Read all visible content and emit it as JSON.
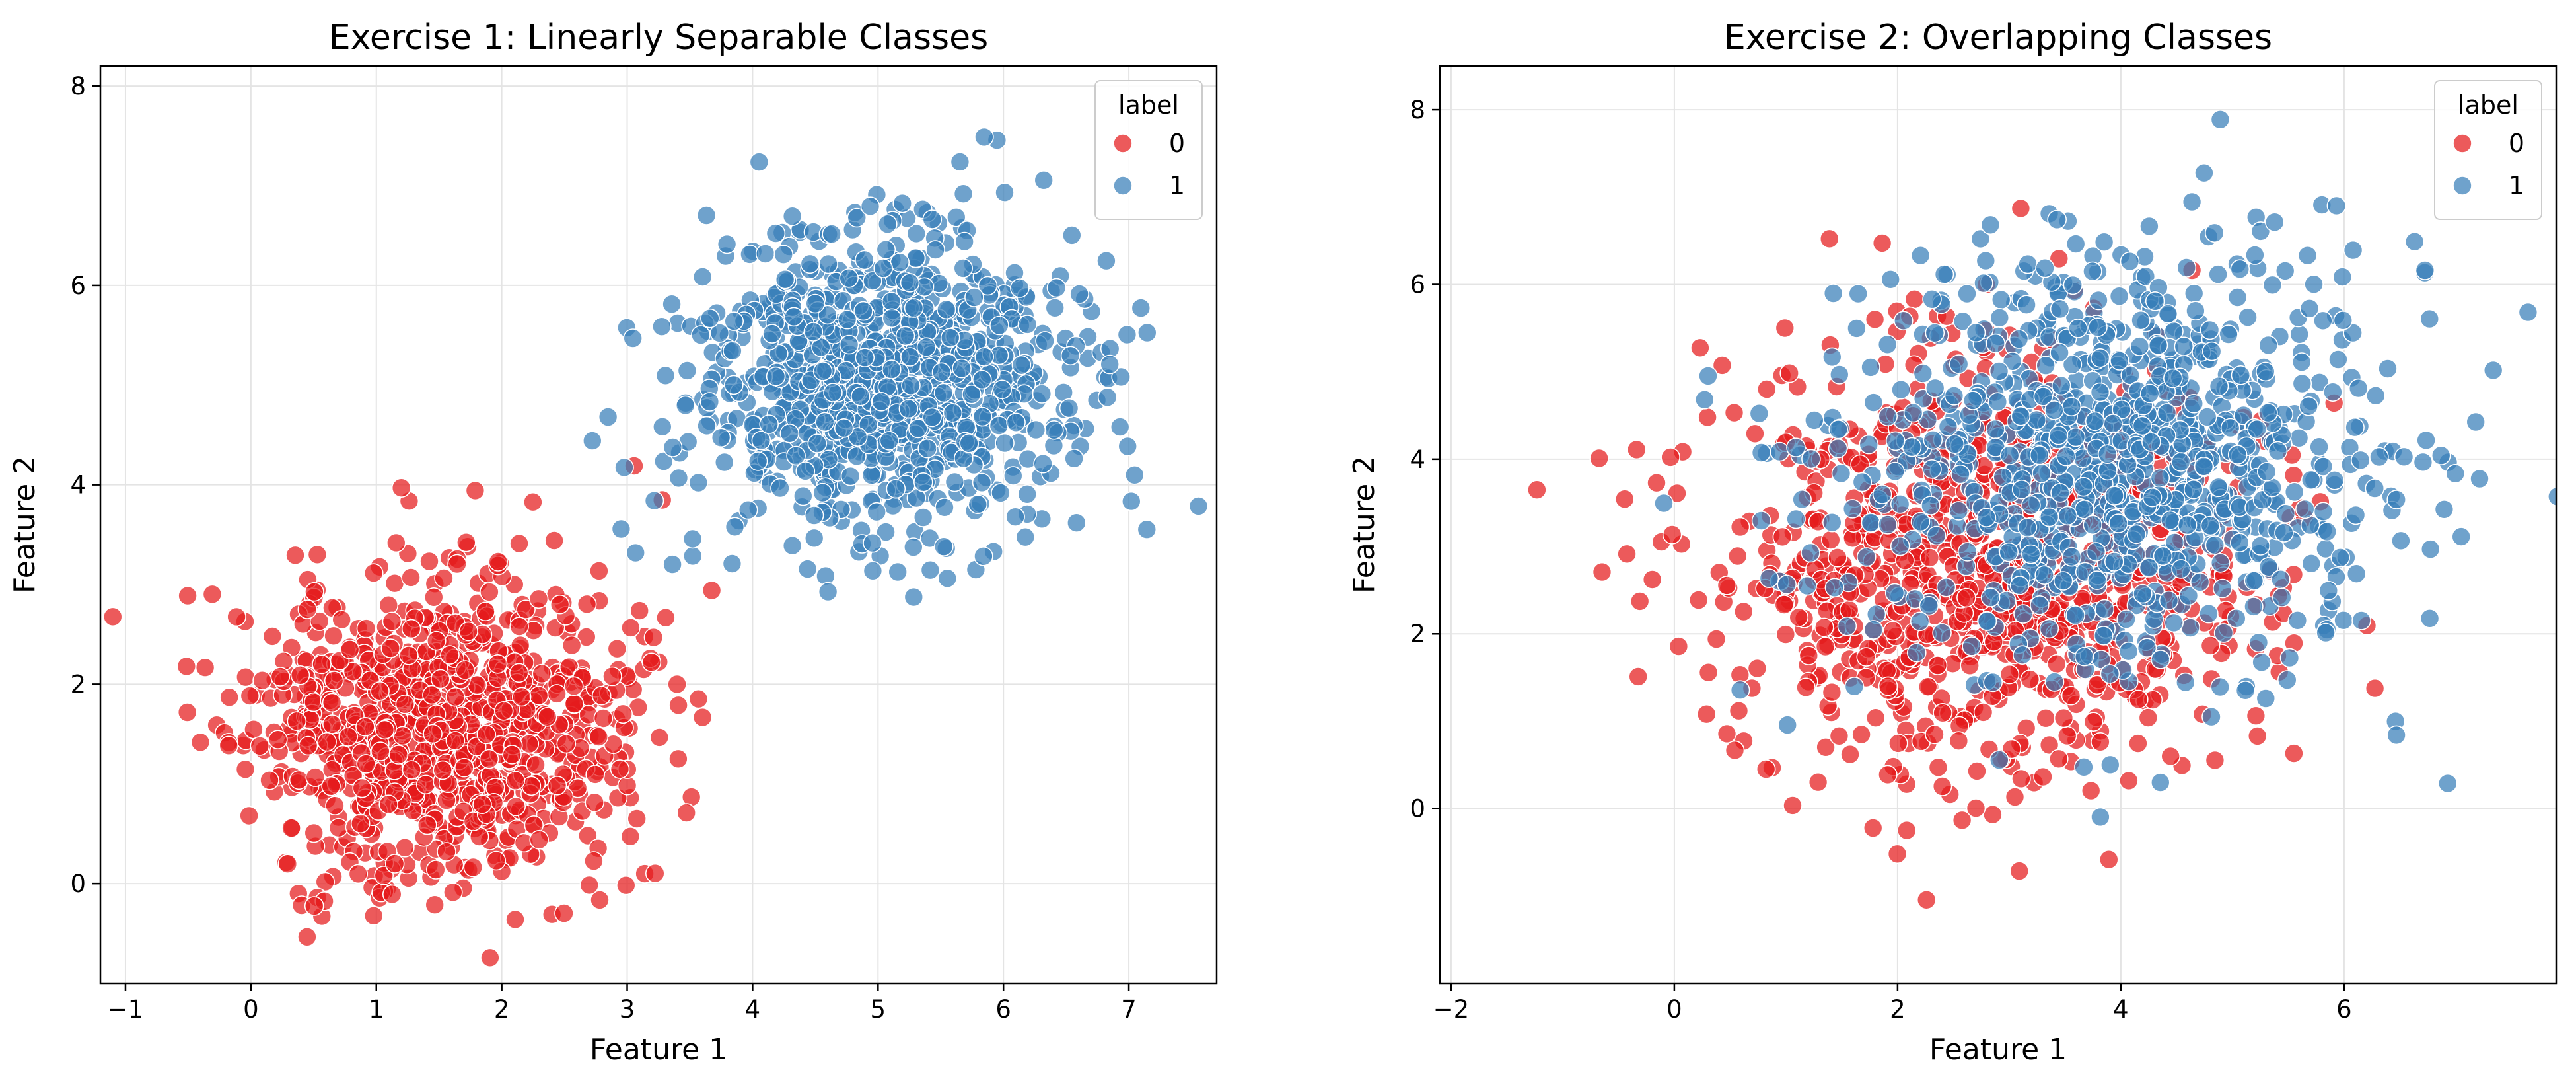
{
  "colors": {
    "class0": "#e41a1c",
    "class1": "#377eb8",
    "grid": "#e4e4e4",
    "axis": "#000000"
  },
  "chart_data": [
    {
      "type": "scatter",
      "title": "Exercise 1: Linearly Separable Classes",
      "xlabel": "Feature 1",
      "ylabel": "Feature 2",
      "xlim": [
        -1.2,
        7.7
      ],
      "ylim": [
        -1.0,
        8.2
      ],
      "xticks": [
        -1,
        0,
        1,
        2,
        3,
        4,
        5,
        6,
        7
      ],
      "yticks": [
        0,
        2,
        4,
        6,
        8
      ],
      "grid": true,
      "legend": {
        "title": "label",
        "position": "top-right",
        "entries": [
          "0",
          "1"
        ]
      },
      "series": [
        {
          "name": "0",
          "center": [
            1.5,
            1.6
          ],
          "spread": [
            0.75,
            0.75
          ],
          "count": 1000,
          "seed": 11
        },
        {
          "name": "1",
          "center": [
            5.0,
            5.0
          ],
          "spread": [
            0.75,
            0.75
          ],
          "count": 1000,
          "seed": 23
        }
      ]
    },
    {
      "type": "scatter",
      "title": "Exercise 2: Overlapping Classes",
      "xlabel": "Feature 1",
      "ylabel": "Feature 2",
      "xlim": [
        -2.1,
        7.9
      ],
      "ylim": [
        -2.0,
        8.5
      ],
      "xticks": [
        -2,
        0,
        2,
        4,
        6
      ],
      "yticks": [
        0,
        2,
        4,
        6,
        8
      ],
      "grid": true,
      "legend": {
        "title": "label",
        "position": "top-right",
        "entries": [
          "0",
          "1"
        ]
      },
      "series": [
        {
          "name": "0",
          "center": [
            2.8,
            2.8
          ],
          "spread": [
            1.2,
            1.2
          ],
          "count": 1000,
          "seed": 37
        },
        {
          "name": "1",
          "center": [
            4.0,
            4.0
          ],
          "spread": [
            1.2,
            1.2
          ],
          "count": 1000,
          "seed": 53
        }
      ]
    }
  ]
}
